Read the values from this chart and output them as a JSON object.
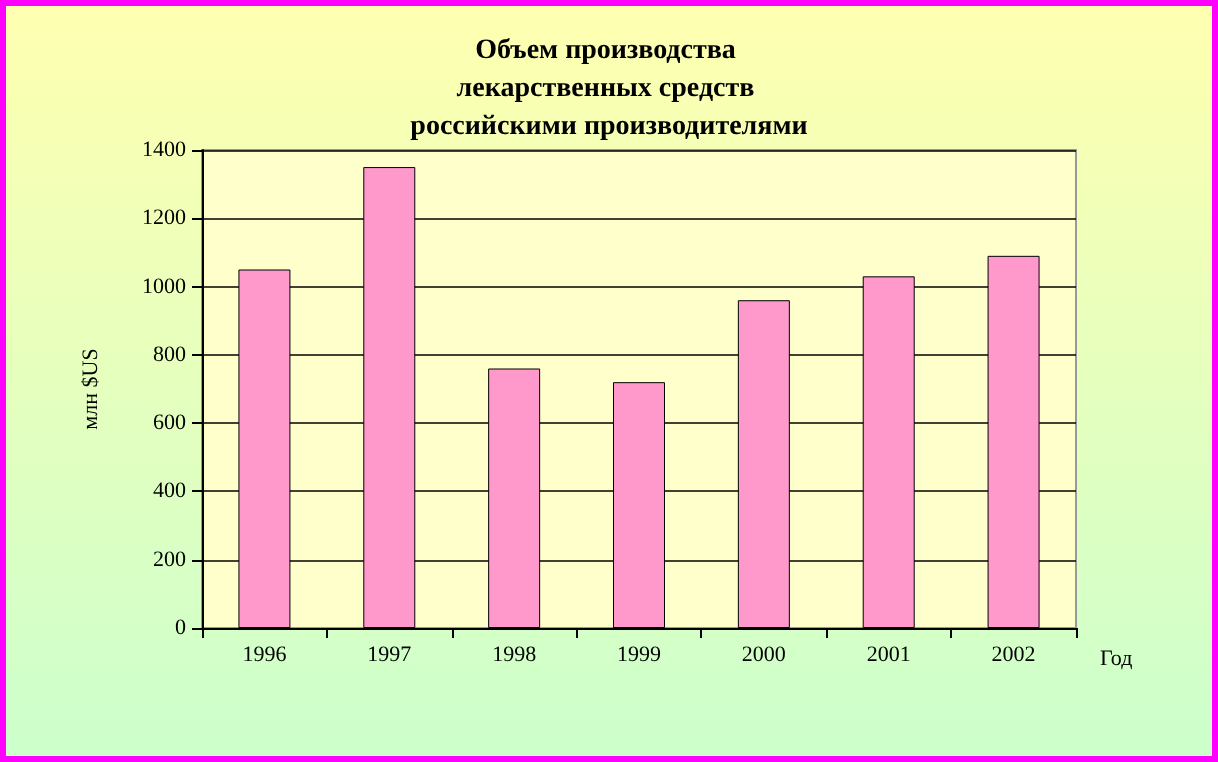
{
  "chart_data": {
    "type": "bar",
    "title": "Объем производства лекарственных средств российскими производителями",
    "xlabel": "Год",
    "ylabel": "млн $US",
    "categories": [
      "1996",
      "1997",
      "1998",
      "1999",
      "2000",
      "2001",
      "2002"
    ],
    "values": [
      1050,
      1350,
      760,
      720,
      960,
      1030,
      1090
    ],
    "color": "#ff99cc",
    "ylim": [
      0,
      1400
    ],
    "yticks": [
      0,
      200,
      400,
      600,
      800,
      1000,
      1200,
      1400
    ],
    "grid": "y"
  }
}
